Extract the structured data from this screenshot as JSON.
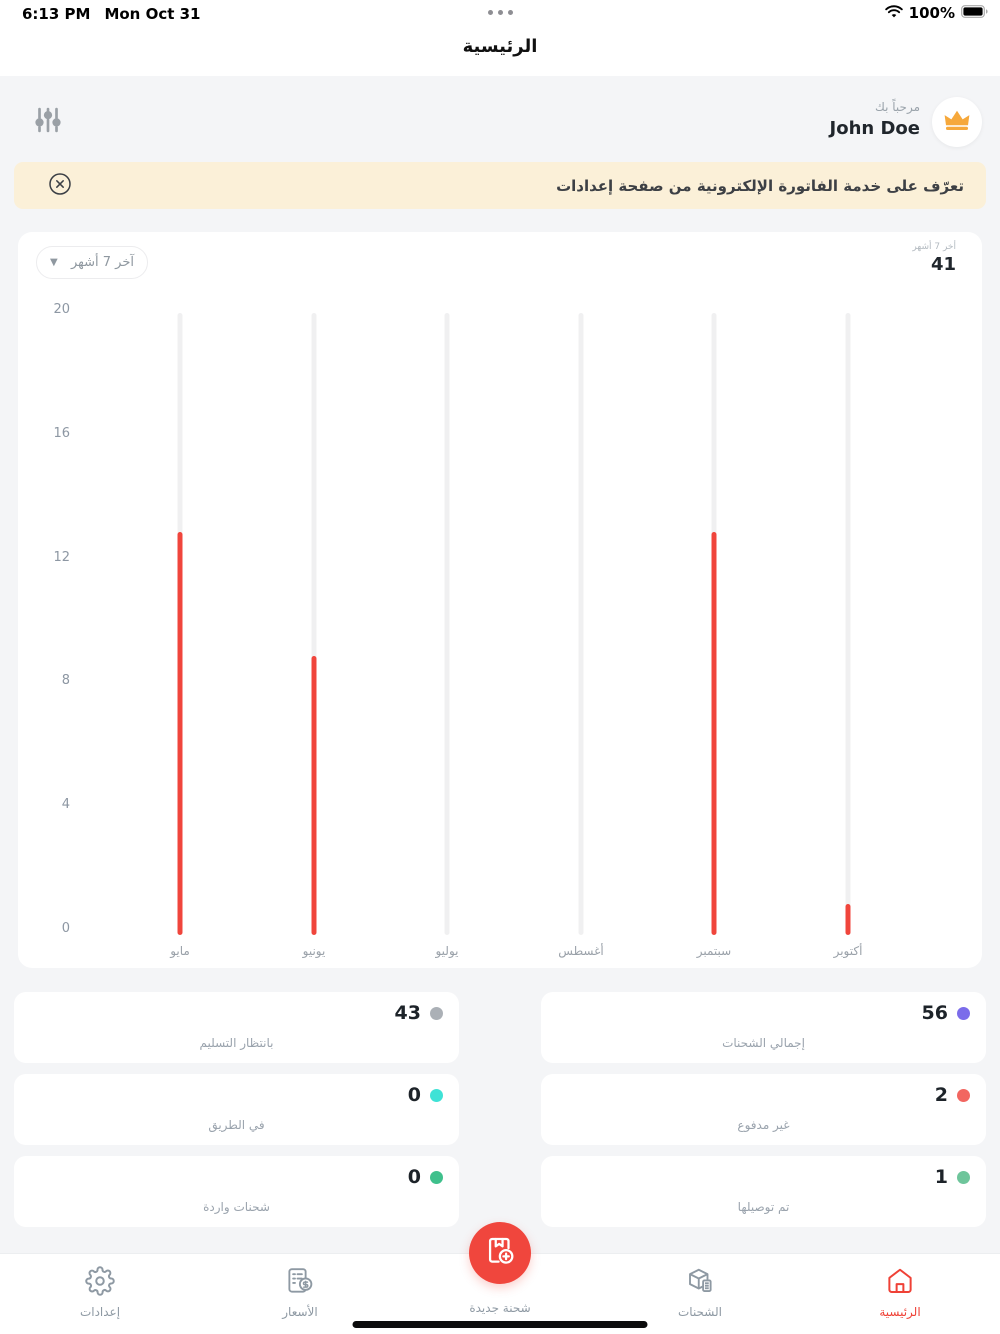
{
  "status_bar": {
    "time": "6:13 PM",
    "date": "Mon Oct 31",
    "battery": "100%"
  },
  "nav": {
    "title": "الرئيسية"
  },
  "header": {
    "greeting": "مرحباً بك",
    "username": "John Doe"
  },
  "banner": {
    "text": "تعرّف على خدمة الفاتورة الإلكترونية من صفحة إعدادات"
  },
  "chart_card": {
    "filter_label": "آخر 7 أشهر",
    "summary_label": "أخر 7 أشهر",
    "summary_value": "41"
  },
  "chart_data": {
    "type": "bar",
    "categories": [
      "مايو",
      "يونيو",
      "يوليو",
      "أغسطس",
      "سبتمبر",
      "أكتوبر"
    ],
    "values": [
      13,
      9,
      0,
      0,
      13,
      1
    ],
    "title": "",
    "xlabel": "",
    "ylabel": "",
    "ylim": [
      0,
      20
    ],
    "yticks": [
      20,
      16,
      12,
      8,
      4,
      0
    ],
    "bar_color": "#f0453c",
    "track_color": "#f0f0f1",
    "grid": false,
    "legend": "none"
  },
  "stats": [
    {
      "value": "56",
      "label": "إجمالي الشحنات",
      "dot_color": "#7b6cea"
    },
    {
      "value": "43",
      "label": "بانتظار التسليم",
      "dot_color": "#abb0b6"
    },
    {
      "value": "2",
      "label": "غير مدفوع",
      "dot_color": "#f26660"
    },
    {
      "value": "0",
      "label": "في الطريق",
      "dot_color": "#3fe2d6"
    },
    {
      "value": "1",
      "label": "تم توصيلها",
      "dot_color": "#6ec59b"
    },
    {
      "value": "0",
      "label": "شحنات واردة",
      "dot_color": "#3fc08c"
    }
  ],
  "tabbar": {
    "active_color": "#ef4136",
    "items": [
      {
        "label": "إعدادات",
        "icon": "gear-icon",
        "active": false,
        "fab": false
      },
      {
        "label": "الأسعار",
        "icon": "price-list-icon",
        "active": false,
        "fab": false
      },
      {
        "label": "شحنة جديدة",
        "icon": "new-shipment-icon",
        "active": false,
        "fab": true
      },
      {
        "label": "الشحنات",
        "icon": "shipments-box-icon",
        "active": false,
        "fab": false
      },
      {
        "label": "الرئيسية",
        "icon": "home-icon",
        "active": true,
        "fab": false
      }
    ]
  }
}
